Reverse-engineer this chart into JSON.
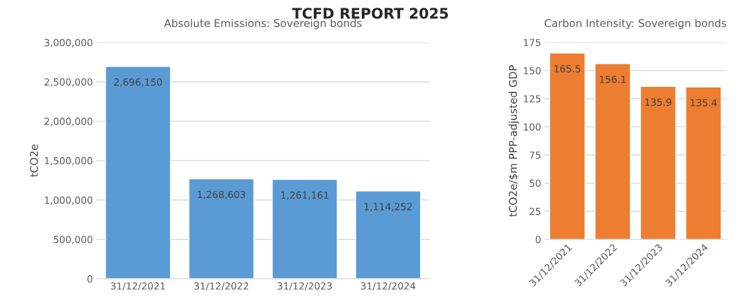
{
  "chart_data": [
    {
      "type": "bar",
      "title": "Absolute Emissions: Sovereign bonds",
      "ylabel": "tCO2e",
      "annotations": [
        "TCFD REPORT 2025"
      ],
      "categories": [
        "31/12/2021",
        "31/12/2022",
        "31/12/2023",
        "31/12/2024"
      ],
      "series": [
        {
          "color": "#5b9bd5",
          "values": [
            2696150,
            1268603,
            1261161,
            1114252
          ]
        }
      ],
      "value_labels": [
        "2,696,150",
        "1,268,603",
        "1,261,161",
        "1,114,252"
      ],
      "ylim": [
        0,
        3000000
      ],
      "yticks": [
        {
          "value": 0,
          "label": "0"
        },
        {
          "value": 500000,
          "label": "500,000"
        },
        {
          "value": 1000000,
          "label": "1,000,000"
        },
        {
          "value": 1500000,
          "label": "1,500,000"
        },
        {
          "value": 2000000,
          "label": "2,000,000"
        },
        {
          "value": 2500000,
          "label": "2,500,000"
        },
        {
          "value": 3000000,
          "label": "3,000,000"
        }
      ],
      "grid": "y",
      "legend": false
    },
    {
      "type": "bar",
      "title": "Carbon Intensity: Sovereign bonds",
      "ylabel": "tCO2e/$m PPP-adjusted GDP",
      "categories": [
        "31/12/2021",
        "31/12/2022",
        "31/12/2023",
        "31/12/2024"
      ],
      "series": [
        {
          "color": "#ed7d31",
          "values": [
            165.5,
            156.1,
            135.9,
            135.4
          ]
        }
      ],
      "data_labels": true,
      "ylim": [
        0,
        175
      ],
      "yticks": [
        0,
        25,
        50,
        75,
        100,
        125,
        150,
        175
      ],
      "grid": "y",
      "legend": false
    }
  ]
}
